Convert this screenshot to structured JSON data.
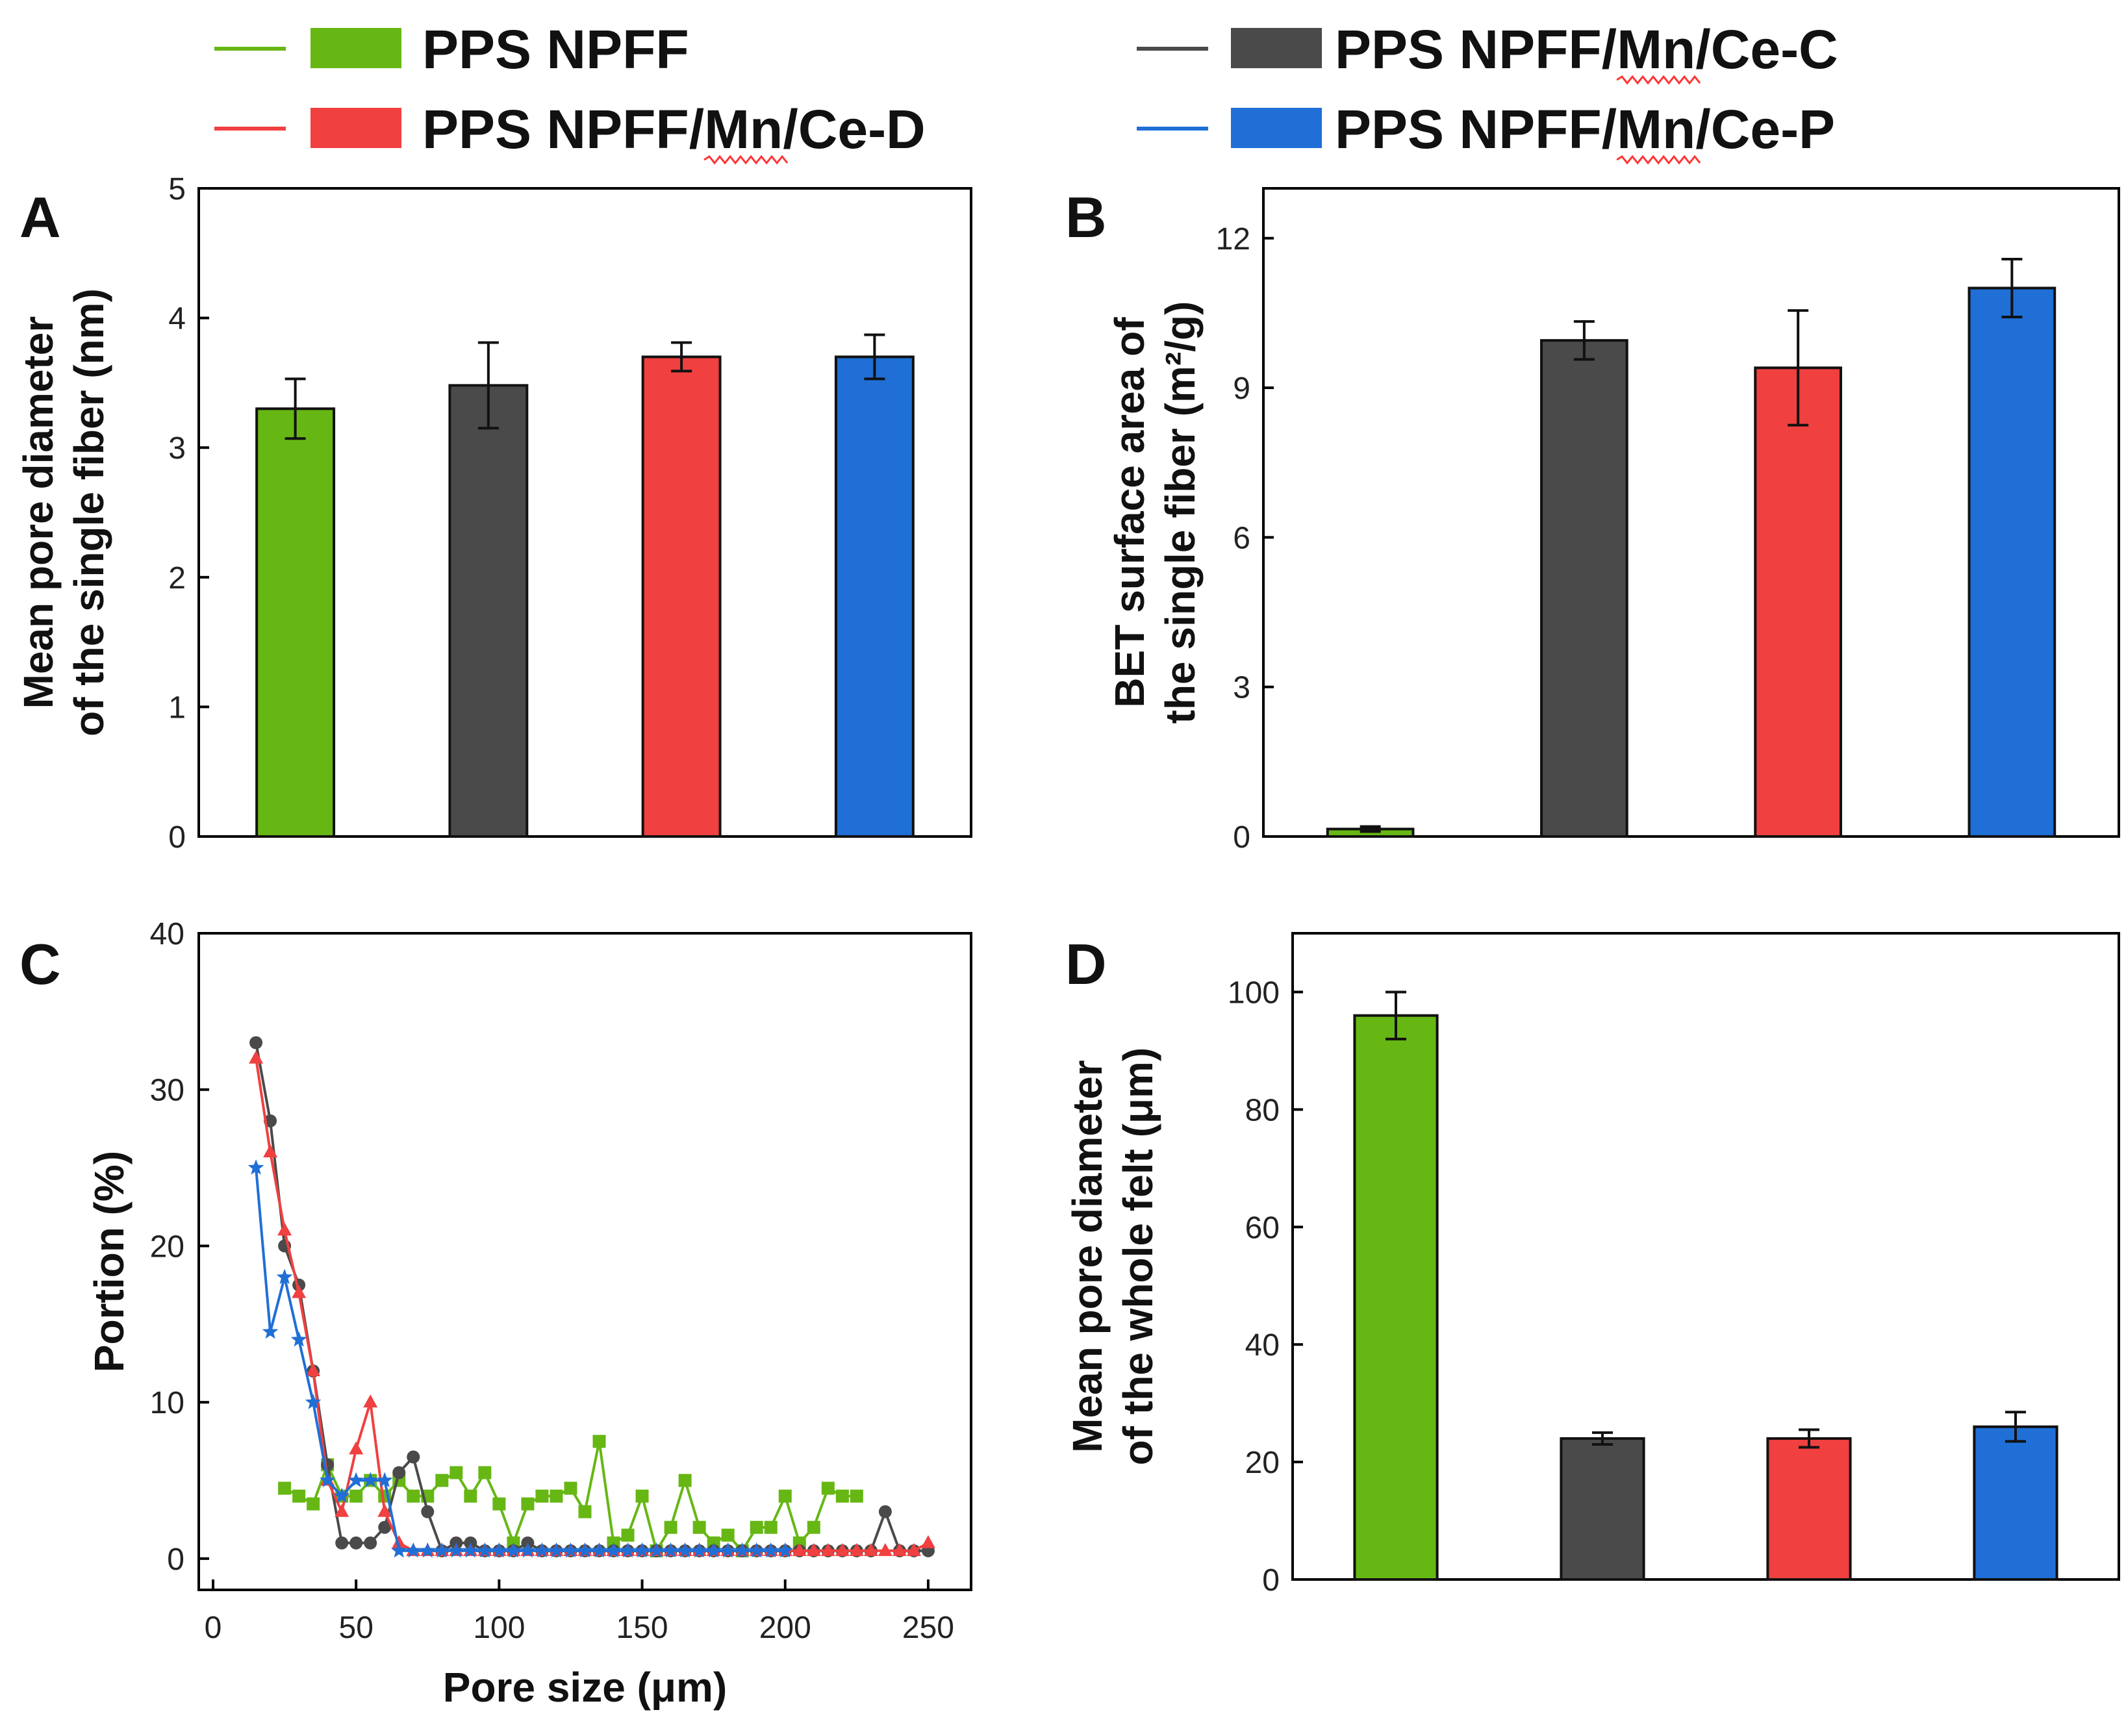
{
  "legend": {
    "entries": [
      {
        "name": "PPS NPFF",
        "color": "#66b714",
        "underline": ""
      },
      {
        "name": "PPS NPFF/Mn/Ce-C",
        "color": "#4a4a4a",
        "underline": "Mn"
      },
      {
        "name": "PPS NPFF/Mn/Ce-D",
        "color": "#f04040",
        "underline": "Mn"
      },
      {
        "name": "PPS NPFF/Mn/Ce-P",
        "color": "#1f6fd6",
        "underline": "Mn"
      }
    ]
  },
  "chart_data": [
    {
      "id": "A",
      "type": "bar",
      "panel_label": "A",
      "ylabel_lines": [
        "Mean pore diameter",
        "of the single fiber (nm)"
      ],
      "xlabel": "",
      "ylim": [
        0,
        5
      ],
      "yticks": [
        0,
        1,
        2,
        3,
        4,
        5
      ],
      "categories": [
        "PPS NPFF",
        "PPS NPFF/Mn/Ce-C",
        "PPS NPFF/Mn/Ce-D",
        "PPS NPFF/Mn/Ce-P"
      ],
      "values": [
        3.3,
        3.48,
        3.7,
        3.7
      ],
      "errors": [
        0.23,
        0.33,
        0.11,
        0.17
      ]
    },
    {
      "id": "B",
      "type": "bar",
      "panel_label": "B",
      "ylabel_lines": [
        "BET surface area of",
        "the single fiber (m²/g)"
      ],
      "xlabel": "",
      "ylim": [
        0,
        13
      ],
      "yticks": [
        0,
        3,
        6,
        9,
        12
      ],
      "categories": [
        "PPS NPFF",
        "PPS NPFF/Mn/Ce-C",
        "PPS NPFF/Mn/Ce-D",
        "PPS NPFF/Mn/Ce-P"
      ],
      "values": [
        0.15,
        9.95,
        9.4,
        11.0
      ],
      "errors": [
        0.05,
        0.38,
        1.15,
        0.58
      ]
    },
    {
      "id": "C",
      "type": "line",
      "panel_label": "C",
      "ylabel_lines": [
        "Portion (%)"
      ],
      "xlabel": "Pore size (μm)",
      "xlim": [
        -5,
        265
      ],
      "ylim": [
        -2,
        40
      ],
      "xticks": [
        0,
        50,
        100,
        150,
        200,
        250
      ],
      "yticks": [
        0,
        10,
        20,
        30,
        40
      ],
      "series": [
        {
          "name": "PPS NPFF",
          "color": "#66b714",
          "marker": "square",
          "x": [
            25,
            30,
            35,
            40,
            45,
            50,
            55,
            60,
            65,
            70,
            75,
            80,
            85,
            90,
            95,
            100,
            105,
            110,
            115,
            120,
            125,
            130,
            135,
            140,
            145,
            150,
            155,
            160,
            165,
            170,
            175,
            180,
            185,
            190,
            195,
            200,
            205,
            210,
            215,
            220,
            225
          ],
          "y": [
            4.5,
            4,
            3.5,
            6,
            4,
            4,
            5,
            4,
            5,
            4,
            4,
            5,
            5.5,
            4,
            5.5,
            3.5,
            1,
            3.5,
            4,
            4,
            4.5,
            3,
            7.5,
            1,
            1.5,
            4,
            0.5,
            2,
            5,
            2,
            1,
            1.5,
            0.5,
            2,
            2,
            4,
            1,
            2,
            4.5,
            4,
            4
          ]
        },
        {
          "name": "PPS NPFF/Mn/Ce-C",
          "color": "#4a4a4a",
          "marker": "circle",
          "x": [
            15,
            20,
            25,
            30,
            35,
            40,
            45,
            50,
            55,
            60,
            65,
            70,
            75,
            80,
            85,
            90,
            95,
            100,
            105,
            110,
            115,
            120,
            125,
            130,
            135,
            140,
            145,
            150,
            155,
            160,
            165,
            170,
            175,
            180,
            185,
            190,
            195,
            200,
            205,
            210,
            215,
            220,
            225,
            230,
            235,
            240,
            245,
            250
          ],
          "y": [
            33,
            28,
            20,
            17.5,
            12,
            6,
            1,
            1,
            1,
            2,
            5.5,
            6.5,
            3,
            0.5,
            1,
            1,
            0.5,
            0.5,
            0.5,
            1,
            0.5,
            0.5,
            0.5,
            0.5,
            0.5,
            0.5,
            0.5,
            0.5,
            0.5,
            0.5,
            0.5,
            0.5,
            0.5,
            0.5,
            0.5,
            0.5,
            0.5,
            0.5,
            0.5,
            0.5,
            0.5,
            0.5,
            0.5,
            0.5,
            3,
            0.5,
            0.5,
            0.5
          ]
        },
        {
          "name": "PPS NPFF/Mn/Ce-D",
          "color": "#f04040",
          "marker": "triangle",
          "x": [
            15,
            20,
            25,
            30,
            35,
            40,
            45,
            50,
            55,
            60,
            65,
            70,
            75,
            80,
            85,
            90,
            95,
            100,
            105,
            110,
            115,
            120,
            125,
            130,
            135,
            140,
            145,
            150,
            155,
            160,
            165,
            170,
            175,
            180,
            185,
            190,
            195,
            200,
            205,
            210,
            215,
            220,
            225,
            230,
            235,
            240,
            245,
            250
          ],
          "y": [
            32,
            26,
            21,
            17,
            12,
            5,
            3,
            7,
            10,
            3,
            1,
            0.5,
            0.5,
            0.5,
            0.5,
            0.5,
            0.5,
            0.5,
            0.5,
            0.5,
            0.5,
            0.5,
            0.5,
            0.5,
            0.5,
            0.5,
            0.5,
            0.5,
            0.5,
            0.5,
            0.5,
            0.5,
            0.5,
            0.5,
            0.5,
            0.5,
            0.5,
            0.5,
            0.5,
            0.5,
            0.5,
            0.5,
            0.5,
            0.5,
            0.5,
            0.5,
            0.5,
            1
          ]
        },
        {
          "name": "PPS NPFF/Mn/Ce-P",
          "color": "#1f6fd6",
          "marker": "star",
          "x": [
            15,
            20,
            25,
            30,
            35,
            40,
            45,
            50,
            55,
            60,
            65,
            70,
            75,
            80,
            85,
            90,
            95,
            100,
            105,
            110,
            115,
            120,
            125,
            130,
            135,
            140,
            145,
            150,
            155,
            160,
            165,
            170,
            175,
            180,
            185,
            190,
            195,
            200
          ],
          "y": [
            25,
            14.5,
            18,
            14,
            10,
            5,
            4,
            5,
            5,
            5,
            0.5,
            0.5,
            0.5,
            0.5,
            0.5,
            0.5,
            0.5,
            0.5,
            0.5,
            0.5,
            0.5,
            0.5,
            0.5,
            0.5,
            0.5,
            0.5,
            0.5,
            0.5,
            0.5,
            0.5,
            0.5,
            0.5,
            0.5,
            0.5,
            0.5,
            0.5,
            0.5,
            0.5
          ]
        }
      ]
    },
    {
      "id": "D",
      "type": "bar",
      "panel_label": "D",
      "ylabel_lines": [
        "Mean pore diameter",
        "of the whole felt (μm)"
      ],
      "xlabel": "",
      "ylim": [
        0,
        110
      ],
      "yticks": [
        0,
        20,
        40,
        60,
        80,
        100
      ],
      "categories": [
        "PPS NPFF",
        "PPS NPFF/Mn/Ce-C",
        "PPS NPFF/Mn/Ce-D",
        "PPS NPFF/Mn/Ce-P"
      ],
      "values": [
        96,
        24,
        24,
        26
      ],
      "errors": [
        4,
        1,
        1.5,
        2.5
      ]
    }
  ]
}
